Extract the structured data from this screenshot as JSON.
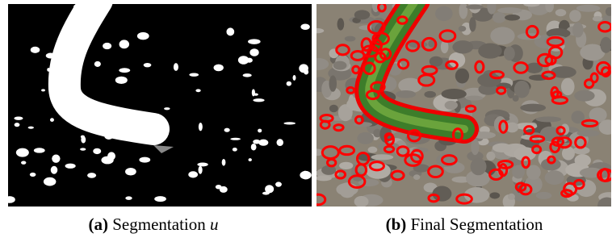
{
  "figure": {
    "panels": [
      {
        "label": "(a)",
        "caption": "Segmentation",
        "symbol": "u"
      },
      {
        "label": "(b)",
        "caption": "Final Segmentation"
      }
    ]
  }
}
